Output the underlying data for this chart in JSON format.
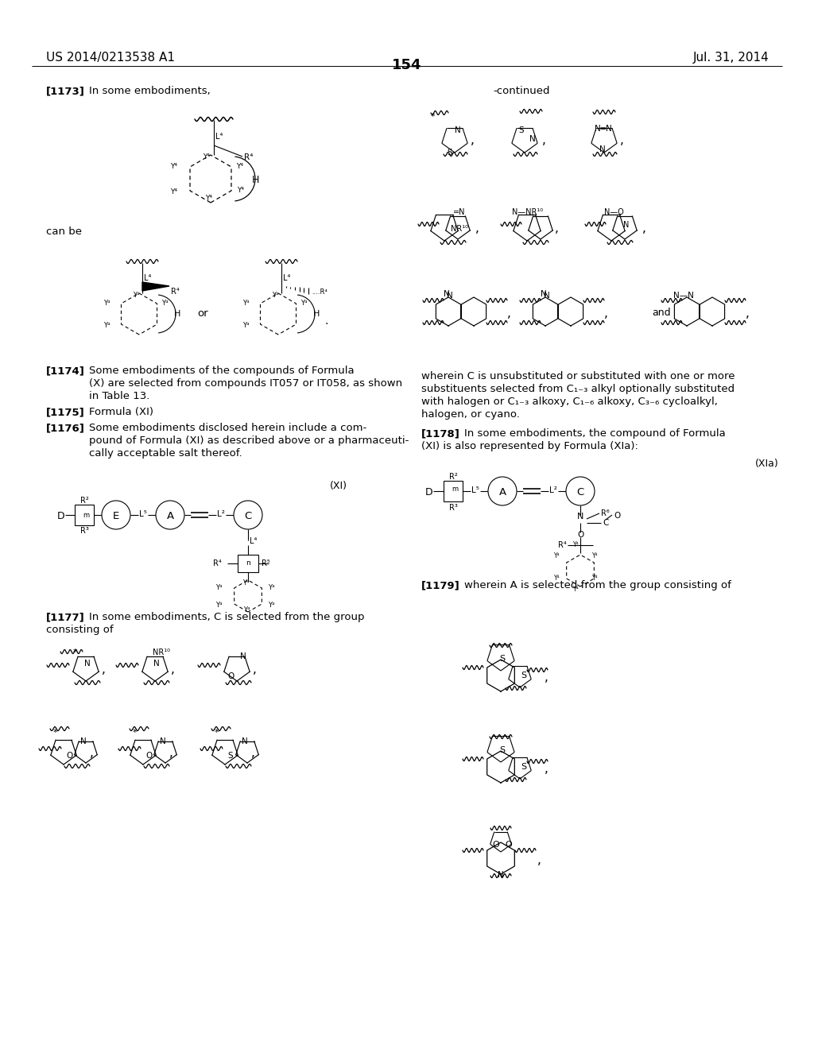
{
  "bg": "#ffffff",
  "patent_number": "US 2014/0213538 A1",
  "patent_date": "Jul. 31, 2014",
  "page_number": "154"
}
